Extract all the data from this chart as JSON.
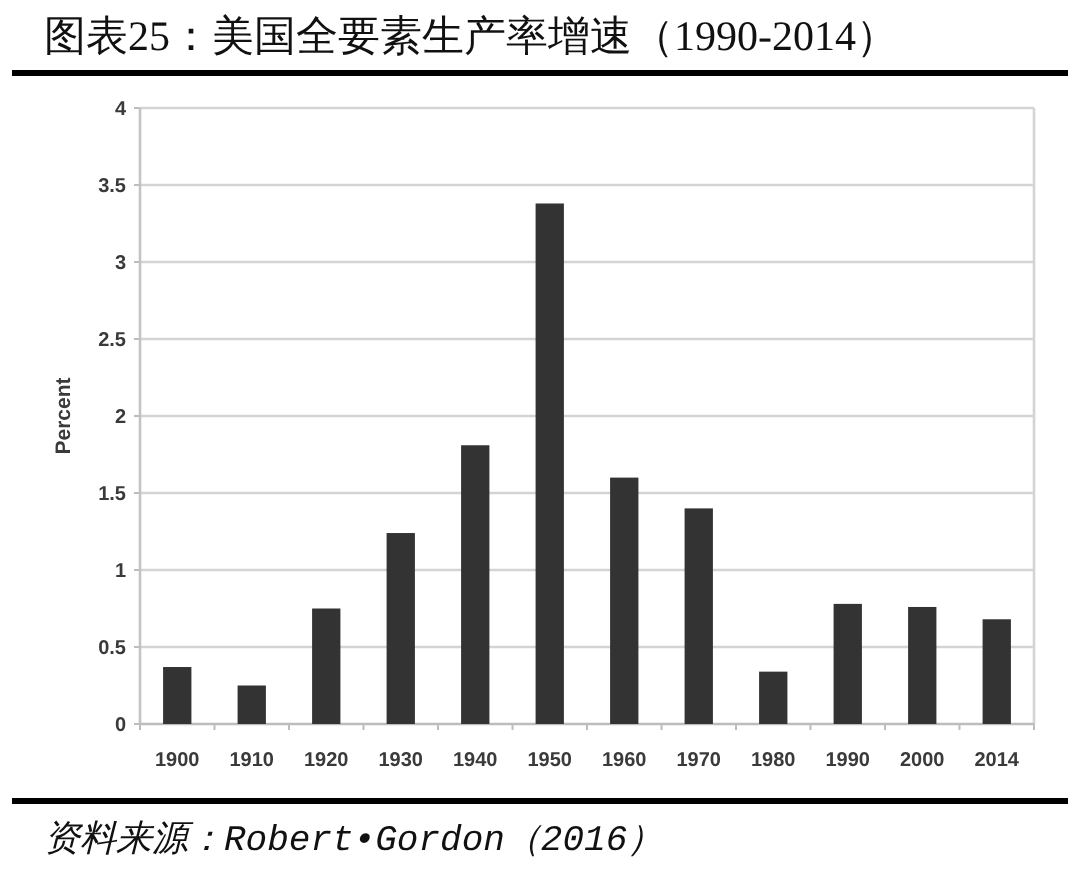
{
  "chart_data": {
    "type": "bar",
    "title": "图表25：美国全要素生产率增速（1990-2014）",
    "ylabel": "Percent",
    "categories": [
      "1900",
      "1910",
      "1920",
      "1930",
      "1940",
      "1950",
      "1960",
      "1970",
      "1980",
      "1990",
      "2000",
      "2014"
    ],
    "values": [
      0.37,
      0.25,
      0.75,
      1.24,
      1.81,
      3.38,
      1.6,
      1.4,
      0.34,
      0.78,
      0.76,
      0.68
    ],
    "color": "#333333",
    "ylim": [
      0,
      4
    ],
    "yticks": [
      0,
      0.5,
      1,
      1.5,
      2,
      2.5,
      3,
      3.5,
      4
    ],
    "grid": "y",
    "annotations": [
      "资料来源：Robert•Gordon（2016）"
    ]
  }
}
